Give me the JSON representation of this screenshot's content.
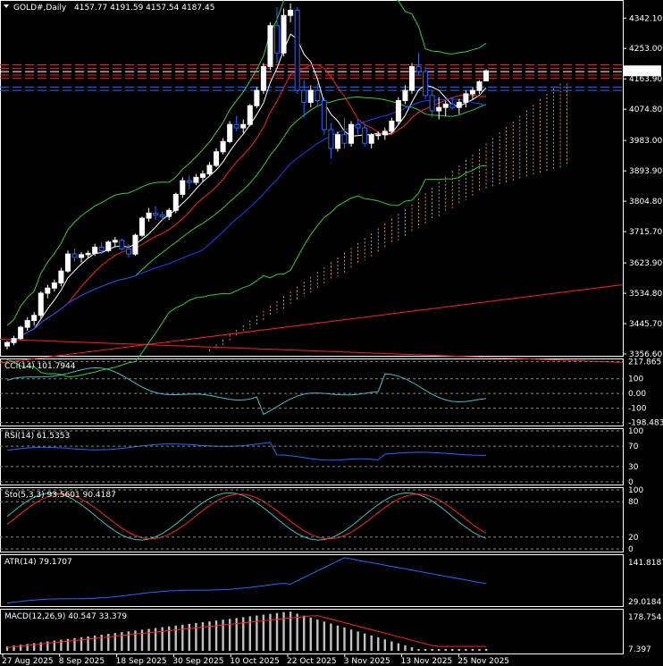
{
  "header": {
    "symbol": "GOLD#,Daily",
    "ohlc": "4157.77 4191.59 4157.54 4187.45"
  },
  "colors": {
    "bull": "#ffffff",
    "bear": "#1e6bff",
    "bb": "#32cd32",
    "ma_fast": "#ffffff",
    "ma_mid": "#ff2020",
    "ma_slow": "#1e3cff",
    "cci": "#40c0c0",
    "rsi": "#1e6bff",
    "stoch_main": "#40c0c0",
    "stoch_signal": "#ff2020",
    "atr": "#1e6bff",
    "macd_hist": "#c0c0c0",
    "macd_signal": "#ff2020",
    "price_tag": "#ffffff"
  },
  "chart_data": [
    {
      "type": "candlestick",
      "title": "GOLD#,Daily",
      "x_labels": [
        "27 Aug 2025",
        "8 Sep 2025",
        "18 Sep 2025",
        "30 Sep 2025",
        "10 Oct 2025",
        "22 Oct 2025",
        "3 Nov 2025",
        "13 Nov 2025",
        "25 Nov 2025"
      ],
      "y_ticks": [
        4342.1,
        4253.0,
        4163.9,
        4074.8,
        3983.0,
        3893.9,
        3804.8,
        3715.7,
        3623.9,
        3534.8,
        3445.7,
        3356.6
      ],
      "ylim": [
        3356.6,
        4390
      ],
      "last_price": "4187.45",
      "candles": [
        [
          3380,
          3395,
          3370,
          3390
        ],
        [
          3390,
          3410,
          3382,
          3402
        ],
        [
          3402,
          3440,
          3398,
          3435
        ],
        [
          3435,
          3465,
          3425,
          3455
        ],
        [
          3455,
          3480,
          3440,
          3470
        ],
        [
          3470,
          3540,
          3462,
          3535
        ],
        [
          3535,
          3560,
          3520,
          3550
        ],
        [
          3550,
          3575,
          3540,
          3565
        ],
        [
          3565,
          3610,
          3555,
          3600
        ],
        [
          3600,
          3660,
          3595,
          3650
        ],
        [
          3650,
          3665,
          3628,
          3640
        ],
        [
          3640,
          3655,
          3625,
          3648
        ],
        [
          3648,
          3660,
          3640,
          3652
        ],
        [
          3652,
          3680,
          3645,
          3670
        ],
        [
          3670,
          3685,
          3650,
          3660
        ],
        [
          3660,
          3690,
          3655,
          3685
        ],
        [
          3685,
          3700,
          3670,
          3690
        ],
        [
          3690,
          3695,
          3660,
          3665
        ],
        [
          3665,
          3680,
          3640,
          3650
        ],
        [
          3650,
          3710,
          3645,
          3705
        ],
        [
          3705,
          3760,
          3700,
          3755
        ],
        [
          3755,
          3785,
          3745,
          3770
        ],
        [
          3770,
          3790,
          3750,
          3765
        ],
        [
          3765,
          3775,
          3745,
          3760
        ],
        [
          3760,
          3785,
          3750,
          3778
        ],
        [
          3778,
          3830,
          3770,
          3825
        ],
        [
          3825,
          3875,
          3815,
          3865
        ],
        [
          3865,
          3880,
          3840,
          3860
        ],
        [
          3860,
          3885,
          3852,
          3875
        ],
        [
          3875,
          3895,
          3860,
          3885
        ],
        [
          3885,
          3920,
          3878,
          3910
        ],
        [
          3910,
          3960,
          3905,
          3950
        ],
        [
          3950,
          3990,
          3942,
          3980
        ],
        [
          3980,
          4040,
          3975,
          4030
        ],
        [
          4030,
          4055,
          4010,
          4020
        ],
        [
          4020,
          4045,
          4005,
          4030
        ],
        [
          4030,
          4090,
          4025,
          4085
        ],
        [
          4085,
          4140,
          4078,
          4130
        ],
        [
          4130,
          4210,
          4120,
          4200
        ],
        [
          4200,
          4330,
          4190,
          4320
        ],
        [
          4320,
          4375,
          4210,
          4240
        ],
        [
          4240,
          4370,
          4230,
          4350
        ],
        [
          4350,
          4385,
          4330,
          4365
        ],
        [
          4365,
          4375,
          4120,
          4130
        ],
        [
          4130,
          4160,
          4050,
          4095
        ],
        [
          4095,
          4145,
          4080,
          4130
        ],
        [
          4130,
          4150,
          4085,
          4100
        ],
        [
          4100,
          4110,
          4000,
          4015
        ],
        [
          4015,
          4035,
          3930,
          3960
        ],
        [
          3960,
          4010,
          3950,
          4000
        ],
        [
          4000,
          4050,
          3960,
          3975
        ],
        [
          3975,
          4040,
          3965,
          4030
        ],
        [
          4030,
          4045,
          4000,
          4020
        ],
        [
          4020,
          4030,
          3965,
          3975
        ],
        [
          3975,
          4005,
          3960,
          3998
        ],
        [
          3998,
          4010,
          3985,
          4000
        ],
        [
          4000,
          4020,
          3985,
          4010
        ],
        [
          4010,
          4050,
          4005,
          4040
        ],
        [
          4040,
          4110,
          4030,
          4100
        ],
        [
          4100,
          4145,
          4090,
          4130
        ],
        [
          4130,
          4210,
          4120,
          4200
        ],
        [
          4200,
          4240,
          4175,
          4185
        ],
        [
          4185,
          4200,
          4105,
          4115
        ],
        [
          4115,
          4130,
          4050,
          4070
        ],
        [
          4070,
          4110,
          4045,
          4080
        ],
        [
          4080,
          4100,
          4055,
          4090
        ],
        [
          4090,
          4110,
          4075,
          4080
        ],
        [
          4080,
          4105,
          4060,
          4095
        ],
        [
          4095,
          4130,
          4080,
          4120
        ],
        [
          4120,
          4140,
          4105,
          4130
        ],
        [
          4130,
          4160,
          4120,
          4155
        ],
        [
          4157.77,
          4191.59,
          4157.54,
          4187.45
        ]
      ]
    },
    {
      "type": "line",
      "title": "CCI(14) 101.7944",
      "y_ticks": [
        "217.865",
        "100",
        "0.00",
        "-100",
        "-198.4836"
      ]
    },
    {
      "type": "line",
      "title": "RSI(14) 61.5353",
      "y_ticks": [
        "100",
        "70",
        "30",
        "0"
      ]
    },
    {
      "type": "line",
      "title": "Sto(5,3,3) 93.5601 90.4187",
      "y_ticks": [
        "100",
        "80",
        "20",
        "0"
      ]
    },
    {
      "type": "line",
      "title": "ATR(14) 79.1707",
      "y_ticks": [
        "141.8187",
        "29.0184"
      ]
    },
    {
      "type": "bar",
      "title": "MACD(12,26,9) 40.547 33.379",
      "y_ticks": [
        "178.754",
        "7.397"
      ]
    }
  ]
}
